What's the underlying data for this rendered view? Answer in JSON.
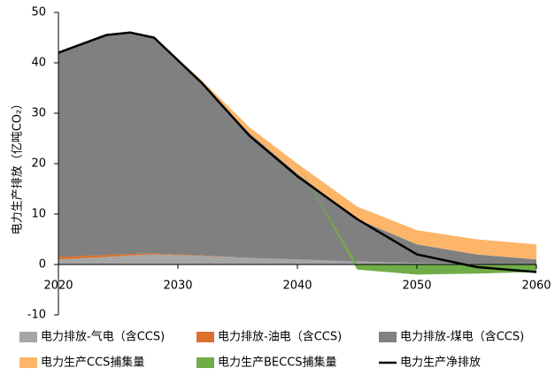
{
  "chart_data": {
    "type": "area",
    "ylabel": "电力生产排放（亿吨CO₂）",
    "x": [
      2020,
      2024,
      2026,
      2028,
      2032,
      2036,
      2040,
      2045,
      2050,
      2055,
      2060
    ],
    "xlim": [
      2020,
      2060
    ],
    "xticks": [
      2020,
      2030,
      2040,
      2050,
      2060
    ],
    "ylim": [
      -10,
      50
    ],
    "yticks": [
      -10,
      0,
      10,
      20,
      30,
      40,
      50
    ],
    "series": [
      {
        "name": "电力排放-气电（含CCS)",
        "color": "#a6a6a6",
        "values": [
          1.0,
          1.5,
          1.8,
          2.0,
          1.7,
          1.3,
          1.0,
          0.6,
          0.3,
          0.1,
          0
        ]
      },
      {
        "name": "电力排放-油电（含CCS)",
        "color": "#d9702e",
        "values": [
          0.5,
          0.4,
          0.3,
          0.2,
          0.1,
          0,
          0,
          0,
          0,
          0,
          0
        ]
      },
      {
        "name": "电力排放-煤电（含CCS)",
        "color": "#808080",
        "values": [
          40.5,
          43.6,
          43.9,
          42.8,
          34.2,
          24.7,
          17.0,
          8.4,
          3.7,
          1.9,
          1.0
        ]
      },
      {
        "name": "电力生产CCS捕集量",
        "color": "#fdb56a",
        "values": [
          0,
          0,
          0,
          0,
          0.5,
          1.2,
          2.0,
          2.5,
          2.8,
          3.0,
          3.0
        ]
      },
      {
        "name": "电力生产BECCS捕集量",
        "color": "#70ad47",
        "values": [
          0,
          0,
          0,
          0,
          0,
          0,
          0,
          -1.0,
          -2.0,
          -1.8,
          -1.5
        ]
      },
      {
        "name": "电力生产净排放",
        "color": "#000000",
        "type": "line",
        "values": [
          42,
          45.5,
          46,
          45,
          36,
          25.5,
          17.5,
          9,
          2,
          -0.5,
          -1.5
        ]
      }
    ]
  }
}
